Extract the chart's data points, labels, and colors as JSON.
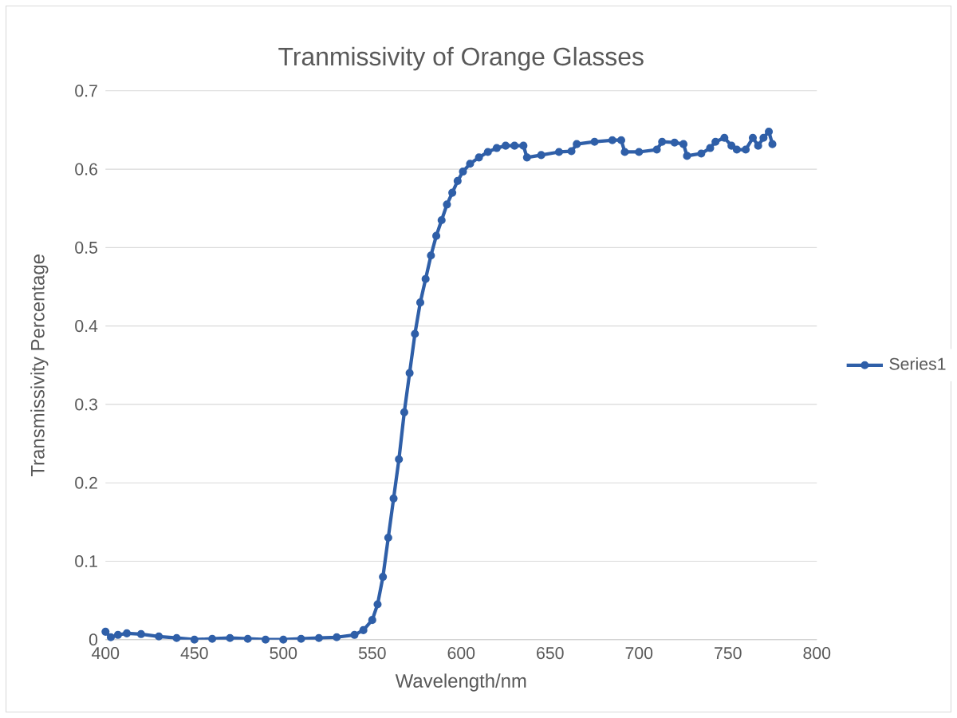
{
  "chart_data": {
    "type": "line",
    "title": "Tranmissivity of Orange Glasses",
    "xlabel": "Wavelength/nm",
    "ylabel": "Transmissivity Percentage",
    "xlim": [
      400,
      800
    ],
    "xticks": [
      400,
      450,
      500,
      550,
      600,
      650,
      700,
      750,
      800
    ],
    "ylim": [
      0,
      0.7
    ],
    "yticks": [
      0,
      0.1,
      0.2,
      0.3,
      0.4,
      0.5,
      0.6,
      0.7
    ],
    "grid": "y",
    "legend": "right",
    "marker": "circle",
    "line_style": "solid",
    "series": [
      {
        "name": "Series1",
        "color": "#2f5fa8",
        "x": [
          400,
          403,
          407,
          412,
          420,
          430,
          440,
          450,
          460,
          470,
          480,
          490,
          500,
          510,
          520,
          530,
          540,
          545,
          550,
          553,
          556,
          559,
          562,
          565,
          568,
          571,
          574,
          577,
          580,
          583,
          586,
          589,
          592,
          595,
          598,
          601,
          605,
          610,
          615,
          620,
          625,
          630,
          635,
          637,
          645,
          655,
          662,
          665,
          675,
          685,
          690,
          692,
          700,
          710,
          713,
          720,
          725,
          727,
          735,
          740,
          743,
          748,
          752,
          755,
          760,
          764,
          767,
          770,
          773,
          775
        ],
        "values": [
          0.01,
          0.003,
          0.006,
          0.008,
          0.007,
          0.004,
          0.002,
          0.0,
          0.001,
          0.002,
          0.001,
          0.0,
          0.0,
          0.001,
          0.002,
          0.003,
          0.006,
          0.012,
          0.025,
          0.045,
          0.08,
          0.13,
          0.18,
          0.23,
          0.29,
          0.34,
          0.39,
          0.43,
          0.46,
          0.49,
          0.515,
          0.535,
          0.555,
          0.57,
          0.585,
          0.597,
          0.607,
          0.615,
          0.622,
          0.627,
          0.63,
          0.63,
          0.63,
          0.615,
          0.618,
          0.622,
          0.623,
          0.632,
          0.635,
          0.637,
          0.637,
          0.622,
          0.622,
          0.625,
          0.635,
          0.634,
          0.632,
          0.617,
          0.62,
          0.627,
          0.635,
          0.64,
          0.63,
          0.625,
          0.625,
          0.64,
          0.63,
          0.64,
          0.648,
          0.632
        ]
      }
    ]
  }
}
